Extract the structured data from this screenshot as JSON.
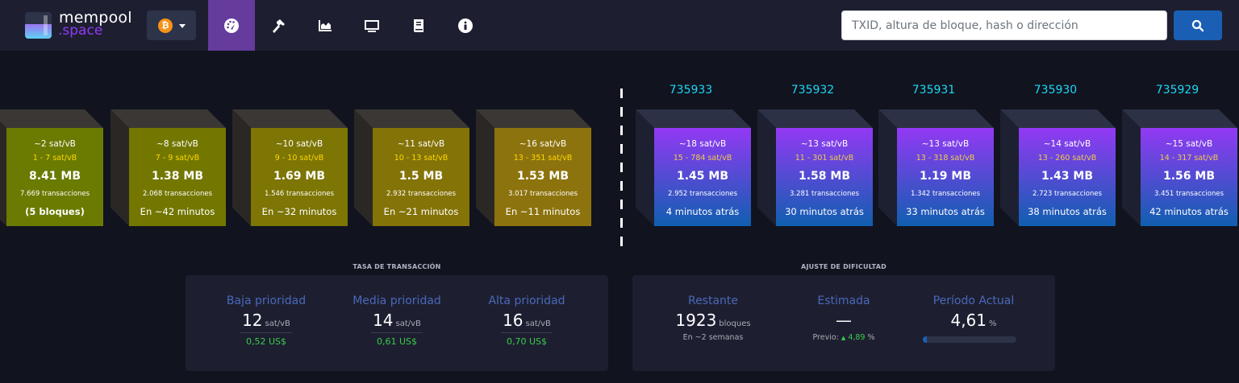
{
  "header": {
    "logo_line1": "mempool",
    "logo_line2": ".space",
    "network": {
      "icon": "bitcoin-icon",
      "symbol": "₿"
    },
    "nav_items": [
      {
        "icon": "dashboard-icon",
        "active": true
      },
      {
        "icon": "mining-hammer-icon",
        "active": false
      },
      {
        "icon": "graphs-icon",
        "active": false
      },
      {
        "icon": "tv-monitor-icon",
        "active": false
      },
      {
        "icon": "docs-book-icon",
        "active": false
      },
      {
        "icon": "info-icon",
        "active": false
      }
    ],
    "search": {
      "placeholder": "TXID, altura de bloque, hash o dirección",
      "value": "",
      "button_icon": "search-icon"
    }
  },
  "colors": {
    "background": "#11131f",
    "navbar": "#1d1f31",
    "active_nav": "#653b9c",
    "accent_blue": "#1a5fb4",
    "block_height": "#1bd8f4",
    "label_blue": "#4a68b9",
    "fiat_green": "#3bcc49"
  },
  "mempool_blocks": [
    {
      "median_fee": "~2 sat/vB",
      "fee_range": "1 - 7 sat/vB",
      "size": "8.41 MB",
      "tx_count": "7.669 transacciones",
      "eta": "(5 bloques)",
      "color": "#6b7a00"
    },
    {
      "median_fee": "~8 sat/vB",
      "fee_range": "7 - 9 sat/vB",
      "size": "1.38 MB",
      "tx_count": "2.068 transacciones",
      "eta": "En ~42 minutos",
      "color": "#737700"
    },
    {
      "median_fee": "~10 sat/vB",
      "fee_range": "9 - 10 sat/vB",
      "size": "1.69 MB",
      "tx_count": "1.546 transacciones",
      "eta": "En ~32 minutos",
      "color": "#7d7504"
    },
    {
      "median_fee": "~11 sat/vB",
      "fee_range": "10 - 13 sat/vB",
      "size": "1.5 MB",
      "tx_count": "2.932 transacciones",
      "eta": "En ~21 minutos",
      "color": "#847307"
    },
    {
      "median_fee": "~16 sat/vB",
      "fee_range": "13 - 351 sat/vB",
      "size": "1.53 MB",
      "tx_count": "3.017 transacciones",
      "eta": "En ~11 minutos",
      "color": "#8d730d"
    }
  ],
  "blockchain_blocks": [
    {
      "height": "735933",
      "median_fee": "~18 sat/vB",
      "fee_range": "15 - 784 sat/vB",
      "size": "1.45 MB",
      "tx_count": "2.952 transacciones",
      "time_ago": "4 minutos atrás"
    },
    {
      "height": "735932",
      "median_fee": "~13 sat/vB",
      "fee_range": "11 - 301 sat/vB",
      "size": "1.58 MB",
      "tx_count": "3.281 transacciones",
      "time_ago": "30 minutos atrás"
    },
    {
      "height": "735931",
      "median_fee": "~13 sat/vB",
      "fee_range": "13 - 318 sat/vB",
      "size": "1.19 MB",
      "tx_count": "1.342 transacciones",
      "time_ago": "33 minutos atrás"
    },
    {
      "height": "735930",
      "median_fee": "~14 sat/vB",
      "fee_range": "13 - 260 sat/vB",
      "size": "1.43 MB",
      "tx_count": "2.723 transacciones",
      "time_ago": "38 minutos atrás"
    },
    {
      "height": "735929",
      "median_fee": "~15 sat/vB",
      "fee_range": "14 - 317 sat/vB",
      "size": "1.56 MB",
      "tx_count": "3.451 transacciones",
      "time_ago": "42 minutos atrás"
    }
  ],
  "fees_card": {
    "title": "TASA DE TRANSACCIÓN",
    "items": [
      {
        "label": "Baja prioridad",
        "value": "12",
        "unit": "sat/vB",
        "fiat": "0,52 US$"
      },
      {
        "label": "Media prioridad",
        "value": "14",
        "unit": "sat/vB",
        "fiat": "0,61 US$"
      },
      {
        "label": "Alta prioridad",
        "value": "16",
        "unit": "sat/vB",
        "fiat": "0,70 US$"
      }
    ]
  },
  "difficulty_card": {
    "title": "AJUSTE DE DIFICULTAD",
    "remaining": {
      "label": "Restante",
      "value": "1923",
      "unit": "bloques",
      "sub": "En ~2 semanas"
    },
    "estimated": {
      "label": "Estimada",
      "value": "—",
      "previous_label": "Previo:",
      "previous_arrow": "▲",
      "previous_value": "4,89",
      "previous_unit": "%"
    },
    "current_period": {
      "label": "Período Actual",
      "value": "4,61",
      "unit": "%",
      "progress_percent": 4.61
    }
  }
}
